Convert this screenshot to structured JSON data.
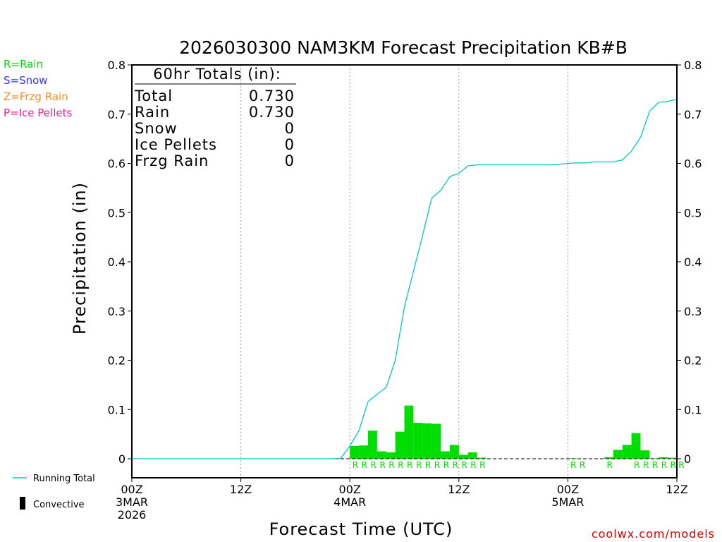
{
  "chart_data": {
    "type": "bar",
    "title": "2026030300 NAM3KM Forecast Precipitation KB#B",
    "xlabel": "Forecast Time (UTC)",
    "ylabel": "Precipitation (in)",
    "ylim": [
      0,
      0.8
    ],
    "yticks": [
      "0",
      "0.1",
      "0.2",
      "0.3",
      "0.4",
      "0.5",
      "0.6",
      "0.7",
      "0.8"
    ],
    "xlim_hours": [
      0,
      60
    ],
    "xticks": [
      {
        "hour": 0,
        "lines": [
          "00Z",
          "3MAR",
          "2026"
        ]
      },
      {
        "hour": 12,
        "lines": [
          "12Z"
        ]
      },
      {
        "hour": 24,
        "lines": [
          "00Z",
          "4MAR"
        ]
      },
      {
        "hour": 36,
        "lines": [
          "12Z"
        ]
      },
      {
        "hour": 48,
        "lines": [
          "00Z",
          "5MAR"
        ]
      },
      {
        "hour": 60,
        "lines": [
          "12Z"
        ]
      }
    ],
    "hourly_precip": [
      {
        "hour": 25,
        "value": 0.026
      },
      {
        "hour": 26,
        "value": 0.027
      },
      {
        "hour": 27,
        "value": 0.057
      },
      {
        "hour": 28,
        "value": 0.015
      },
      {
        "hour": 29,
        "value": 0.013
      },
      {
        "hour": 30,
        "value": 0.055
      },
      {
        "hour": 31,
        "value": 0.108
      },
      {
        "hour": 32,
        "value": 0.073
      },
      {
        "hour": 33,
        "value": 0.072
      },
      {
        "hour": 34,
        "value": 0.071
      },
      {
        "hour": 35,
        "value": 0.015
      },
      {
        "hour": 36,
        "value": 0.028
      },
      {
        "hour": 37,
        "value": 0.008
      },
      {
        "hour": 38,
        "value": 0.013
      },
      {
        "hour": 39,
        "value": 0.002
      },
      {
        "hour": 49,
        "value": 0.001
      },
      {
        "hour": 53,
        "value": 0.003
      },
      {
        "hour": 54,
        "value": 0.018
      },
      {
        "hour": 55,
        "value": 0.028
      },
      {
        "hour": 56,
        "value": 0.052
      },
      {
        "hour": 57,
        "value": 0.017
      },
      {
        "hour": 58,
        "value": 0.001
      },
      {
        "hour": 59,
        "value": 0.003
      },
      {
        "hour": 60,
        "value": 0.002
      }
    ],
    "running_total": [
      [
        0,
        0
      ],
      [
        1,
        0
      ],
      [
        2,
        0
      ],
      [
        3,
        0
      ],
      [
        4,
        0
      ],
      [
        5,
        0
      ],
      [
        6,
        0
      ],
      [
        7,
        0
      ],
      [
        8,
        0
      ],
      [
        9,
        0
      ],
      [
        10,
        0
      ],
      [
        11,
        0
      ],
      [
        12,
        0
      ],
      [
        13,
        0
      ],
      [
        14,
        0
      ],
      [
        15,
        0
      ],
      [
        16,
        0
      ],
      [
        17,
        0
      ],
      [
        18,
        0
      ],
      [
        19,
        0
      ],
      [
        20,
        0
      ],
      [
        21,
        0
      ],
      [
        22,
        0
      ],
      [
        23,
        0.001
      ],
      [
        24,
        0.026
      ],
      [
        25,
        0.057
      ],
      [
        26,
        0.116
      ],
      [
        27,
        0.131
      ],
      [
        28,
        0.145
      ],
      [
        29,
        0.2
      ],
      [
        30,
        0.308
      ],
      [
        31,
        0.381
      ],
      [
        32,
        0.453
      ],
      [
        33,
        0.529
      ],
      [
        34,
        0.545
      ],
      [
        35,
        0.573
      ],
      [
        36,
        0.58
      ],
      [
        37,
        0.595
      ],
      [
        38,
        0.597
      ],
      [
        39,
        0.597
      ],
      [
        40,
        0.597
      ],
      [
        41,
        0.597
      ],
      [
        42,
        0.597
      ],
      [
        43,
        0.597
      ],
      [
        44,
        0.597
      ],
      [
        45,
        0.597
      ],
      [
        46,
        0.597
      ],
      [
        47,
        0.598
      ],
      [
        48,
        0.6
      ],
      [
        49,
        0.601
      ],
      [
        50,
        0.601
      ],
      [
        51,
        0.603
      ],
      [
        52,
        0.603
      ],
      [
        53,
        0.603
      ],
      [
        54,
        0.607
      ],
      [
        55,
        0.625
      ],
      [
        56,
        0.653
      ],
      [
        57,
        0.706
      ],
      [
        58,
        0.724
      ],
      [
        59,
        0.726
      ],
      [
        60,
        0.73
      ]
    ],
    "ptype_markers": [
      {
        "hour": 24.6,
        "label": "R"
      },
      {
        "hour": 25.6,
        "label": "R"
      },
      {
        "hour": 26.6,
        "label": "R"
      },
      {
        "hour": 27.6,
        "label": "R"
      },
      {
        "hour": 28.6,
        "label": "R"
      },
      {
        "hour": 29.6,
        "label": "R"
      },
      {
        "hour": 30.6,
        "label": "R"
      },
      {
        "hour": 31.6,
        "label": "R"
      },
      {
        "hour": 32.6,
        "label": "R"
      },
      {
        "hour": 33.6,
        "label": "R"
      },
      {
        "hour": 34.6,
        "label": "R"
      },
      {
        "hour": 35.6,
        "label": "R"
      },
      {
        "hour": 36.6,
        "label": "R"
      },
      {
        "hour": 37.6,
        "label": "R"
      },
      {
        "hour": 38.6,
        "label": "R"
      },
      {
        "hour": 48.6,
        "label": "R"
      },
      {
        "hour": 49.6,
        "label": "R"
      },
      {
        "hour": 52.6,
        "label": "R"
      },
      {
        "hour": 55.6,
        "label": "R"
      },
      {
        "hour": 56.6,
        "label": "R"
      },
      {
        "hour": 57.6,
        "label": "R"
      },
      {
        "hour": 58.6,
        "label": "R"
      },
      {
        "hour": 59.6,
        "label": "R"
      },
      {
        "hour": 60.5,
        "label": "R"
      }
    ],
    "totals_box": {
      "header": "60hr Totals (in):",
      "rows": [
        {
          "label": "Total",
          "value": "0.730"
        },
        {
          "label": "Rain",
          "value": "0.730"
        },
        {
          "label": "Snow",
          "value": "0"
        },
        {
          "label": "Ice Pellets",
          "value": "0"
        },
        {
          "label": "Frzg Rain",
          "value": "0"
        }
      ]
    },
    "ptype_legend": [
      {
        "text": "R=Rain",
        "color": "#00dd00"
      },
      {
        "text": "S=Snow",
        "color": "#3333ff"
      },
      {
        "text": "Z=Frzg Rain",
        "color": "#ff8c1a"
      },
      {
        "text": "P=Ice Pellets",
        "color": "#ee1d8e"
      }
    ],
    "series_legend": [
      {
        "name": "Running Total",
        "color": "#00c8c8",
        "kind": "line"
      },
      {
        "name": "Convective",
        "color": "#000000",
        "kind": "bar"
      }
    ],
    "bar_color": "#00dd00",
    "line_color": "#00c8c8",
    "credit": "coolwx.com/models",
    "credit_color": "#d40000"
  }
}
